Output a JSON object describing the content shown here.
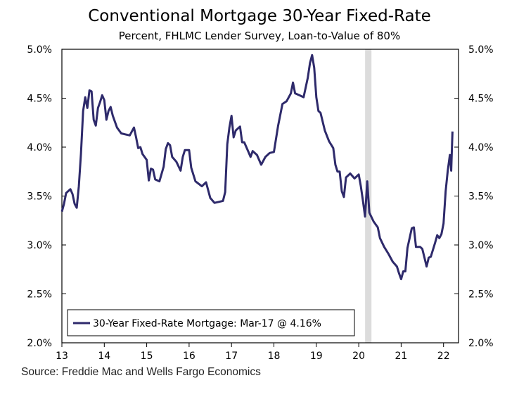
{
  "chart_data": {
    "type": "line",
    "title": "Conventional Mortgage 30-Year Fixed-Rate",
    "subtitle": "Percent, FHLMC Lender Survey, Loan-to-Value of 80%",
    "source": "Source: Freddie Mac and Wells Fargo Economics",
    "xlim": [
      13,
      22.35
    ],
    "ylim": [
      2.0,
      5.0
    ],
    "x_ticks": [
      "13",
      "14",
      "15",
      "16",
      "17",
      "18",
      "19",
      "20",
      "21",
      "22"
    ],
    "y_ticks_left": [
      "2.0%",
      "2.5%",
      "3.0%",
      "3.5%",
      "4.0%",
      "4.5%",
      "5.0%"
    ],
    "y_ticks_right": [
      "2.0%",
      "2.5%",
      "3.0%",
      "3.5%",
      "4.0%",
      "4.5%",
      "5.0%"
    ],
    "grid": false,
    "legend_position": "bottom-left",
    "recession_shading": [
      20.15,
      20.3
    ],
    "colors": {
      "line": "#2e2a6b",
      "recession": "#dcdcdc"
    },
    "series": [
      {
        "name": "30-Year Fixed-Rate Mortgage: Mar-17 @ 4.16%",
        "x": [
          13.0,
          13.05,
          13.1,
          13.2,
          13.25,
          13.3,
          13.35,
          13.4,
          13.45,
          13.5,
          13.55,
          13.6,
          13.65,
          13.7,
          13.75,
          13.8,
          13.85,
          13.9,
          13.95,
          14.0,
          14.05,
          14.1,
          14.15,
          14.2,
          14.3,
          14.4,
          14.5,
          14.6,
          14.7,
          14.75,
          14.8,
          14.85,
          14.9,
          15.0,
          15.05,
          15.1,
          15.15,
          15.2,
          15.3,
          15.4,
          15.45,
          15.5,
          15.55,
          15.6,
          15.7,
          15.8,
          15.85,
          15.9,
          16.0,
          16.05,
          16.15,
          16.3,
          16.4,
          16.5,
          16.6,
          16.7,
          16.8,
          16.85,
          16.9,
          16.95,
          17.0,
          17.05,
          17.1,
          17.2,
          17.25,
          17.3,
          17.4,
          17.45,
          17.5,
          17.6,
          17.7,
          17.8,
          17.9,
          18.0,
          18.1,
          18.2,
          18.3,
          18.4,
          18.45,
          18.5,
          18.6,
          18.7,
          18.8,
          18.85,
          18.9,
          18.95,
          19.0,
          19.05,
          19.1,
          19.2,
          19.3,
          19.4,
          19.45,
          19.5,
          19.55,
          19.6,
          19.65,
          19.7,
          19.8,
          19.9,
          20.0,
          20.05,
          20.1,
          20.15,
          20.2,
          20.25,
          20.35,
          20.45,
          20.5,
          20.6,
          20.7,
          20.8,
          20.9,
          20.95,
          21.0,
          21.05,
          21.1,
          21.15,
          21.25,
          21.3,
          21.35,
          21.45,
          21.5,
          21.55,
          21.6,
          21.65,
          21.7,
          21.8,
          21.85,
          21.9,
          21.95,
          22.0,
          22.05,
          22.1,
          22.15,
          22.18,
          22.21
        ],
        "y": [
          3.34,
          3.42,
          3.53,
          3.57,
          3.52,
          3.42,
          3.38,
          3.6,
          3.93,
          4.37,
          4.51,
          4.4,
          4.58,
          4.57,
          4.28,
          4.22,
          4.4,
          4.46,
          4.53,
          4.48,
          4.28,
          4.37,
          4.41,
          4.32,
          4.2,
          4.14,
          4.13,
          4.12,
          4.2,
          4.1,
          3.99,
          4.0,
          3.93,
          3.87,
          3.66,
          3.78,
          3.77,
          3.67,
          3.65,
          3.8,
          3.98,
          4.04,
          4.02,
          3.9,
          3.85,
          3.76,
          3.9,
          3.97,
          3.97,
          3.79,
          3.65,
          3.6,
          3.64,
          3.48,
          3.43,
          3.44,
          3.45,
          3.54,
          4.03,
          4.2,
          4.32,
          4.1,
          4.17,
          4.21,
          4.05,
          4.05,
          3.95,
          3.9,
          3.96,
          3.92,
          3.82,
          3.9,
          3.94,
          3.95,
          4.22,
          4.44,
          4.47,
          4.55,
          4.66,
          4.55,
          4.53,
          4.51,
          4.71,
          4.86,
          4.94,
          4.81,
          4.51,
          4.37,
          4.35,
          4.17,
          4.06,
          3.99,
          3.82,
          3.75,
          3.75,
          3.55,
          3.49,
          3.69,
          3.73,
          3.68,
          3.72,
          3.6,
          3.45,
          3.29,
          3.65,
          3.33,
          3.24,
          3.18,
          3.07,
          2.98,
          2.91,
          2.83,
          2.78,
          2.71,
          2.65,
          2.73,
          2.73,
          2.97,
          3.17,
          3.18,
          2.98,
          2.98,
          2.96,
          2.87,
          2.78,
          2.87,
          2.88,
          3.02,
          3.1,
          3.07,
          3.11,
          3.22,
          3.55,
          3.76,
          3.92,
          3.76,
          4.16
        ]
      }
    ]
  }
}
